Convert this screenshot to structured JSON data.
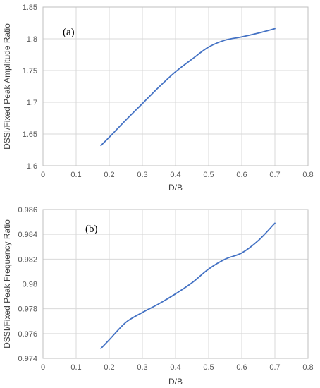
{
  "colors": {
    "line": "#4472C4",
    "grid": "#d9d9d9",
    "border": "#bfbfbf"
  },
  "chart_data": [
    {
      "type": "line",
      "panel_label": "(a)",
      "xlabel": "D/B",
      "ylabel": "DSSI/Fixed Peak Amplitude Ratio",
      "xlim": [
        0,
        0.8
      ],
      "ylim": [
        1.6,
        1.85
      ],
      "xticks": [
        "0",
        "0.1",
        "0.2",
        "0.3",
        "0.4",
        "0.5",
        "0.6",
        "0.7",
        "0.8"
      ],
      "yticks": [
        "1.6",
        "1.65",
        "1.7",
        "1.75",
        "1.8",
        "1.85"
      ],
      "grid": true,
      "x": [
        0.175,
        0.2,
        0.25,
        0.3,
        0.35,
        0.4,
        0.45,
        0.5,
        0.55,
        0.6,
        0.65,
        0.7
      ],
      "y": [
        1.632,
        1.645,
        1.672,
        1.698,
        1.724,
        1.748,
        1.768,
        1.787,
        1.798,
        1.803,
        1.809,
        1.816
      ]
    },
    {
      "type": "line",
      "panel_label": "(b)",
      "xlabel": "D/B",
      "ylabel": "DSSI/Fixed Peak Frequency Ratio",
      "xlim": [
        0,
        0.8
      ],
      "ylim": [
        0.974,
        0.986
      ],
      "xticks": [
        "0",
        "0.1",
        "0.2",
        "0.3",
        "0.4",
        "0.5",
        "0.6",
        "0.7",
        "0.8"
      ],
      "yticks": [
        "0.974",
        "0.976",
        "0.978",
        "0.98",
        "0.982",
        "0.984",
        "0.986"
      ],
      "grid": true,
      "x": [
        0.175,
        0.2,
        0.25,
        0.3,
        0.35,
        0.4,
        0.45,
        0.5,
        0.55,
        0.6,
        0.65,
        0.7
      ],
      "y": [
        0.9748,
        0.9755,
        0.9769,
        0.9777,
        0.9784,
        0.9792,
        0.9801,
        0.9812,
        0.982,
        0.9825,
        0.9835,
        0.9849
      ]
    }
  ]
}
